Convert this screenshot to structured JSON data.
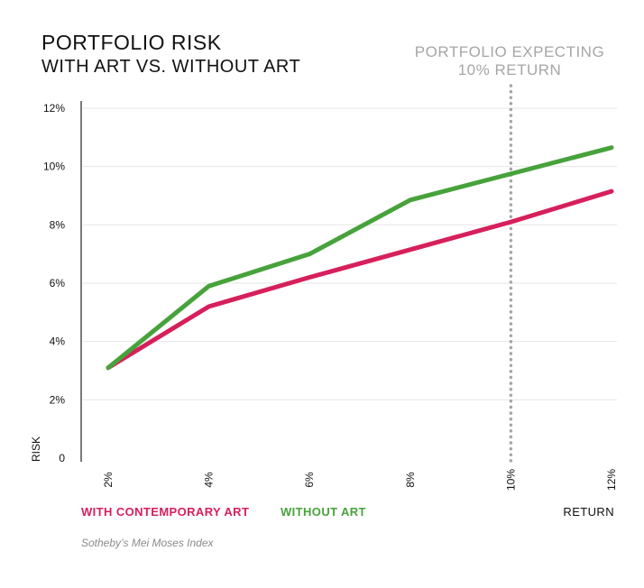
{
  "title": "PORTFOLIO RISK",
  "subtitle": "WITH ART VS. WITHOUT ART",
  "annotation": {
    "line1": "PORTFOLIO EXPECTING",
    "line2": "10% RETURN"
  },
  "source": "Sotheby’s Mei Moses Index",
  "legend": [
    {
      "label": "WITH CONTEMPORARY ART",
      "color": "#d6205b"
    },
    {
      "label": "WITHOUT ART",
      "color": "#47a23b"
    }
  ],
  "chart_data": {
    "type": "line",
    "xlabel": "RETURN",
    "ylabel": "RISK",
    "x": [
      2,
      4,
      6,
      8,
      10,
      12
    ],
    "x_tick_labels": [
      "2%",
      "4%",
      "6%",
      "8%",
      "10%",
      "12%"
    ],
    "y_ticks": [
      0,
      2,
      4,
      6,
      8,
      10,
      12
    ],
    "y_tick_labels": [
      "0",
      "2%",
      "4%",
      "6%",
      "8%",
      "10%",
      "12%"
    ],
    "xlim": [
      2,
      12
    ],
    "ylim": [
      0,
      12
    ],
    "grid": "horizontal",
    "reference_line": {
      "x": 10,
      "style": "dotted",
      "color": "#a6a6a6"
    },
    "series": [
      {
        "name": "WITH CONTEMPORARY ART",
        "color": "#d6205b",
        "values": [
          3.1,
          5.2,
          6.2,
          7.15,
          8.1,
          9.15
        ]
      },
      {
        "name": "WITHOUT ART",
        "color": "#47a23b",
        "values": [
          3.1,
          5.9,
          7.0,
          8.85,
          9.75,
          10.65
        ]
      }
    ]
  }
}
